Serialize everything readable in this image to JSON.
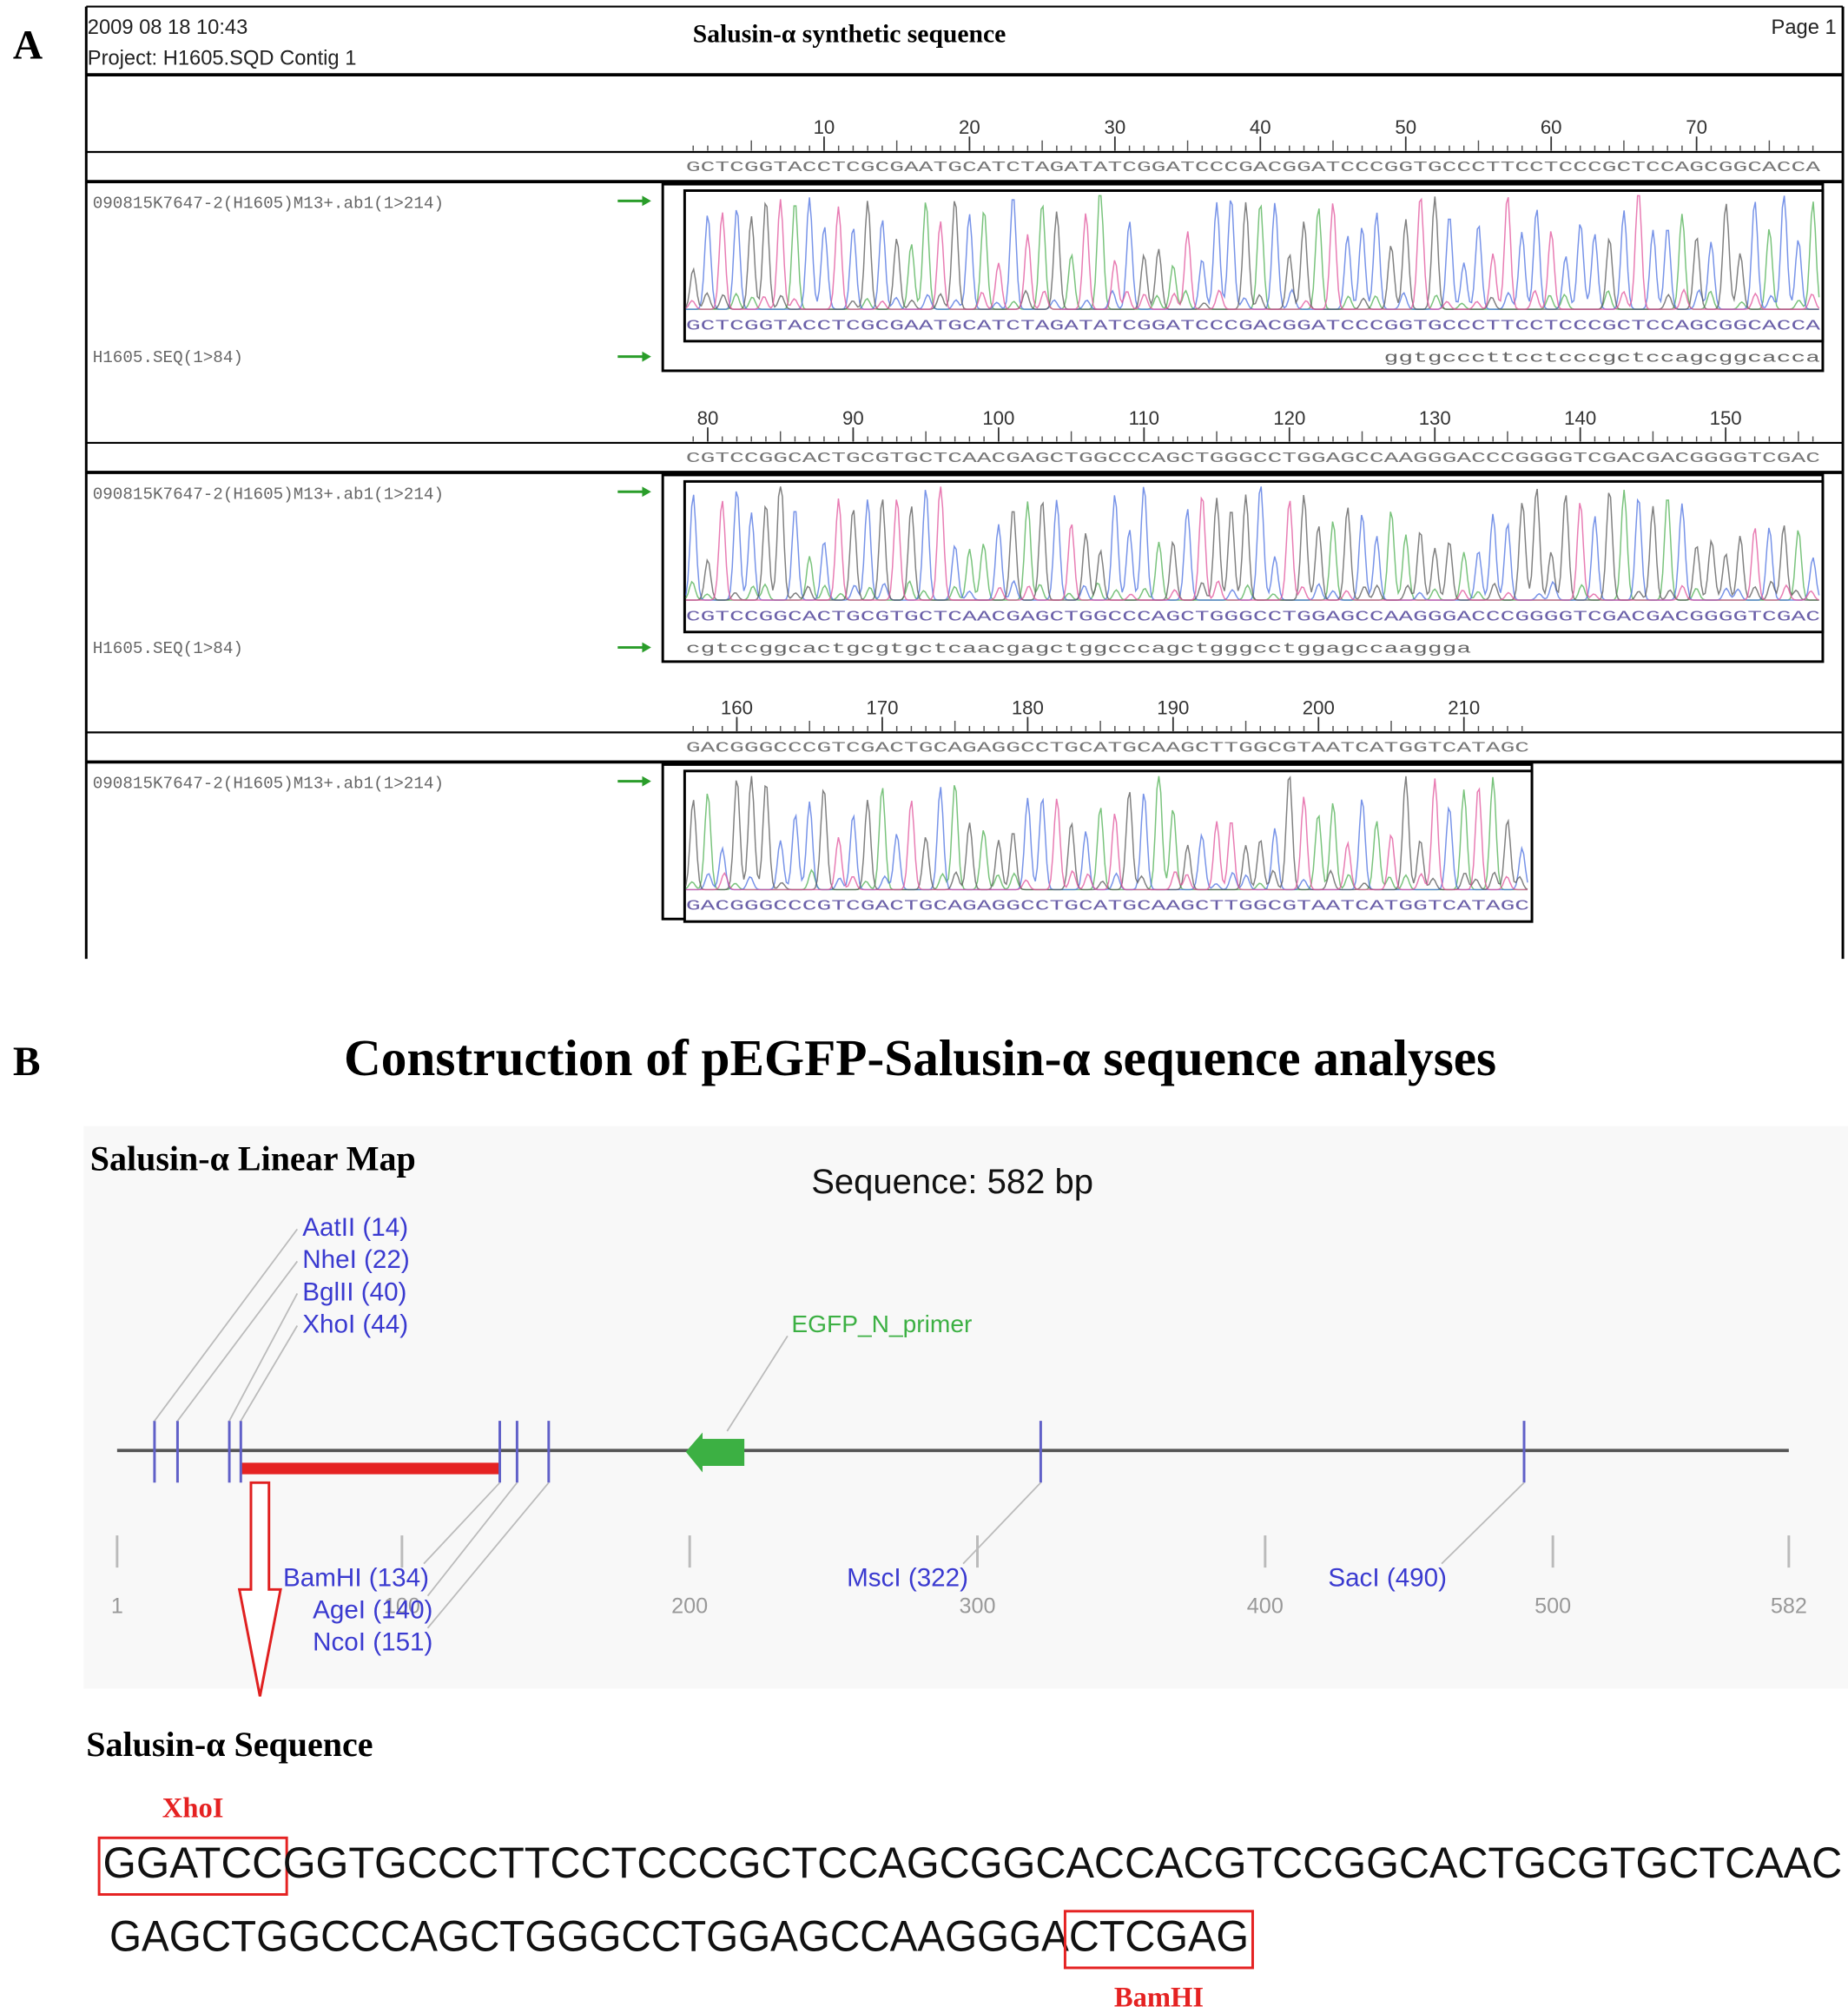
{
  "panel_a": {
    "label": "A",
    "date": "2009 08 18 10:43",
    "project": "Project: H1605.SQD Contig 1",
    "title": "Salusin-α synthetic sequence",
    "page": "Page 1",
    "blocks": [
      {
        "ruler": [
          10,
          20,
          30,
          40,
          50,
          60,
          70
        ],
        "reference": "GCTCGGTACCTCGCGAATGCATCTAGATATCGGATCCCGACGGATCCCGGTGCCCTTCCTCCCGCTCCAGCGGCACCA",
        "trace_label": "090815K7647-2(H1605)M13+.ab1(1>214)",
        "read_label": "H1605.SEQ(1>84)",
        "read": "ggtgcccttcctcccgctccagcggcacca",
        "read_start": 49
      },
      {
        "ruler": [
          80,
          90,
          100,
          110,
          120,
          130,
          140,
          150
        ],
        "reference": "CGTCCGGCACTGCGTGCTCAACGAGCTGGCCCAGCTGGGCCTGGAGCCAAGGGACCCGGGGTCGACGACGGGGTCGAC",
        "trace_label": "090815K7647-2(H1605)M13+.ab1(1>214)",
        "read_label": "H1605.SEQ(1>84)",
        "read": "cgtccggcactgcgtgctcaacgagctggcccagctgggcctggagccaaggga",
        "read_start": 79
      },
      {
        "ruler": [
          160,
          170,
          180,
          190,
          200,
          210
        ],
        "reference": "GACGGGCCCGTCGACTGCAGAGGCCTGCATGCAAGCTTGGCGTAATCATGGTCATAGC",
        "trace_label": "090815K7647-2(H1605)M13+.ab1(1>214)"
      }
    ]
  },
  "panel_b": {
    "label": "B",
    "title": "Construction of pEGFP-Salusin-α sequence analyses",
    "map_title": "Salusin-α Linear Map",
    "length_label": "Sequence: 582 bp",
    "xlim": [
      1,
      582
    ],
    "xticks": [
      1,
      100,
      200,
      300,
      400,
      500,
      582
    ],
    "sites": [
      {
        "label": "AatII (14)",
        "position": 14
      },
      {
        "label": "NheI (22)",
        "position": 22
      },
      {
        "label": "BglII (40)",
        "position": 40
      },
      {
        "label": "XhoI (44)",
        "position": 44
      },
      {
        "label": "BamHI (134)",
        "position": 134
      },
      {
        "label": "AgeI (140)",
        "position": 140
      },
      {
        "label": "NcoI (151)",
        "position": 151
      },
      {
        "label": "MscI (322)",
        "position": 322
      },
      {
        "label": "SacI (490)",
        "position": 490
      }
    ],
    "primer": {
      "label": "EGFP_N_primer",
      "start": 200,
      "end": 219
    },
    "insert": {
      "start": 44,
      "end": 134
    },
    "sequence_title": "Salusin-α Sequence",
    "sequence_lines": [
      [
        {
          "text": "GGATCC",
          "site": "XhoI"
        },
        {
          "text": "GGTGCCCTTCCTCCCGCTCCAGCGGCACCACGTCCGGCACTGCGTGCTCAAC"
        }
      ],
      [
        {
          "text": "GAGCTGGCCCAGCTGGGCCTGGAGCCAAGGGA"
        },
        {
          "text": "CTCGAG",
          "site": "BamHI"
        }
      ]
    ]
  }
}
